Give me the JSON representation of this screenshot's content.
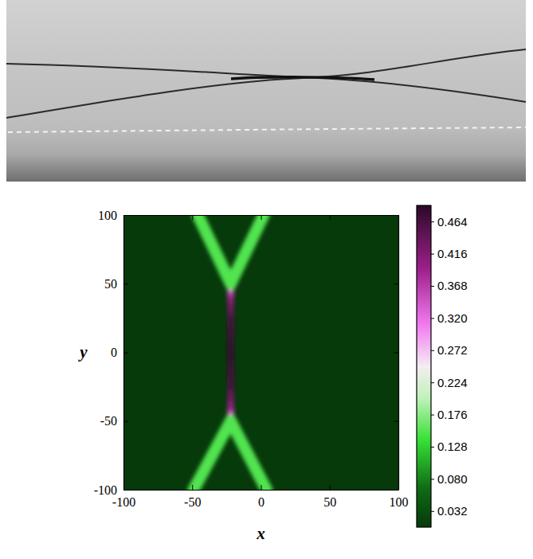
{
  "chart_data": {
    "type": "heatmap",
    "xlabel": "x",
    "ylabel": "y",
    "xlim": [
      -100,
      100
    ],
    "ylim": [
      -100,
      100
    ],
    "xticks": [
      -100,
      -50,
      0,
      50,
      100
    ],
    "yticks": [
      -100,
      -50,
      0,
      50,
      100
    ],
    "ridges": [
      {
        "x": [
          -22,
          -22,
          -22,
          -22,
          -22,
          -22,
          -22
        ],
        "y": [
          -47,
          -40,
          -25,
          0,
          25,
          40,
          47
        ],
        "values": [
          0.3,
          0.4,
          0.46,
          0.48,
          0.46,
          0.4,
          0.3
        ]
      },
      {
        "x": [
          -22,
          -46
        ],
        "y": [
          50,
          100
        ],
        "values": [
          0.15,
          0.15
        ]
      },
      {
        "x": [
          -22,
          2
        ],
        "y": [
          50,
          100
        ],
        "values": [
          0.15,
          0.15
        ]
      },
      {
        "x": [
          -22,
          -49
        ],
        "y": [
          -50,
          -100
        ],
        "values": [
          0.15,
          0.15
        ]
      },
      {
        "x": [
          -22,
          4
        ],
        "y": [
          -50,
          -100
        ],
        "values": [
          0.15,
          0.15
        ]
      }
    ],
    "colorbar": {
      "range": [
        0.008,
        0.488
      ],
      "ticks": [
        0.032,
        {
          "value": 0.08,
          "label": "0.080"
        },
        0.128,
        0.176,
        0.224,
        0.272,
        {
          "value": 0.32,
          "label": "0.320"
        },
        0.368,
        0.416,
        0.464
      ]
    }
  }
}
